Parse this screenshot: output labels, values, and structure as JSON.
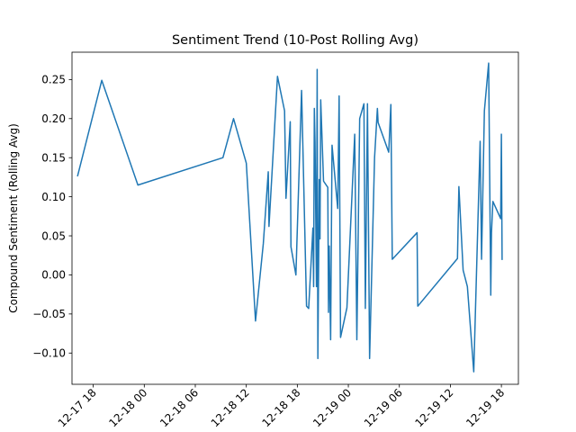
{
  "chart_data": {
    "type": "line",
    "title": "Sentiment Trend (10-Post Rolling Avg)",
    "xlabel": "",
    "ylabel": "Compound Sentiment (Rolling Avg)",
    "x_axis": {
      "type": "datetime",
      "range": [
        "2024-12-17 15:30",
        "2024-12-19 20:00"
      ],
      "ticks": [
        {
          "value": "2024-12-17 18:00",
          "label": "12-17 18"
        },
        {
          "value": "2024-12-18 00:00",
          "label": "12-18 00"
        },
        {
          "value": "2024-12-18 06:00",
          "label": "12-18 06"
        },
        {
          "value": "2024-12-18 12:00",
          "label": "12-18 12"
        },
        {
          "value": "2024-12-18 18:00",
          "label": "12-18 18"
        },
        {
          "value": "2024-12-19 00:00",
          "label": "12-19 00"
        },
        {
          "value": "2024-12-19 06:00",
          "label": "12-19 06"
        },
        {
          "value": "2024-12-19 12:00",
          "label": "12-19 12"
        },
        {
          "value": "2024-12-19 18:00",
          "label": "12-19 18"
        }
      ]
    },
    "y_axis": {
      "range": [
        -0.14,
        0.285
      ],
      "ticks": [
        {
          "value": -0.1,
          "label": "−0.10"
        },
        {
          "value": -0.05,
          "label": "−0.05"
        },
        {
          "value": 0.0,
          "label": "0.00"
        },
        {
          "value": 0.05,
          "label": "0.05"
        },
        {
          "value": 0.1,
          "label": "0.10"
        },
        {
          "value": 0.15,
          "label": "0.15"
        },
        {
          "value": 0.2,
          "label": "0.20"
        },
        {
          "value": 0.25,
          "label": "0.25"
        }
      ]
    },
    "grid": false,
    "line_color": "#1f77b4",
    "series": [
      {
        "points": [
          [
            "2024-12-17 16:10",
            0.127
          ],
          [
            "2024-12-17 19:00",
            0.249
          ],
          [
            "2024-12-17 23:15",
            0.115
          ],
          [
            "2024-12-18 09:15",
            0.15
          ],
          [
            "2024-12-18 10:30",
            0.2
          ],
          [
            "2024-12-18 12:00",
            0.143
          ],
          [
            "2024-12-18 13:05",
            -0.059
          ],
          [
            "2024-12-18 14:00",
            0.04
          ],
          [
            "2024-12-18 14:35",
            0.132
          ],
          [
            "2024-12-18 14:40",
            0.062
          ],
          [
            "2024-12-18 15:40",
            0.254
          ],
          [
            "2024-12-18 16:30",
            0.21
          ],
          [
            "2024-12-18 16:40",
            0.098
          ],
          [
            "2024-12-18 17:10",
            0.196
          ],
          [
            "2024-12-18 17:15",
            0.036
          ],
          [
            "2024-12-18 17:50",
            0.0
          ],
          [
            "2024-12-18 18:30",
            0.236
          ],
          [
            "2024-12-18 19:05",
            -0.04
          ],
          [
            "2024-12-18 19:20",
            -0.043
          ],
          [
            "2024-12-18 19:50",
            0.06
          ],
          [
            "2024-12-18 19:55",
            -0.015
          ],
          [
            "2024-12-18 20:00",
            0.213
          ],
          [
            "2024-12-18 20:05",
            0.17
          ],
          [
            "2024-12-18 20:15",
            -0.015
          ],
          [
            "2024-12-18 20:20",
            0.263
          ],
          [
            "2024-12-18 20:25",
            -0.107
          ],
          [
            "2024-12-18 20:35",
            0.122
          ],
          [
            "2024-12-18 20:40",
            0.046
          ],
          [
            "2024-12-18 20:45",
            0.224
          ],
          [
            "2024-12-18 21:05",
            0.12
          ],
          [
            "2024-12-18 21:35",
            0.112
          ],
          [
            "2024-12-18 21:40",
            -0.048
          ],
          [
            "2024-12-18 21:45",
            0.037
          ],
          [
            "2024-12-18 21:55",
            -0.083
          ],
          [
            "2024-12-18 22:05",
            0.166
          ],
          [
            "2024-12-18 22:45",
            0.085
          ],
          [
            "2024-12-18 22:55",
            0.229
          ],
          [
            "2024-12-18 23:05",
            -0.08
          ],
          [
            "2024-12-18 23:50",
            -0.042
          ],
          [
            "2024-12-19 00:45",
            0.18
          ],
          [
            "2024-12-19 01:00",
            -0.083
          ],
          [
            "2024-12-19 01:20",
            0.2
          ],
          [
            "2024-12-19 01:50",
            0.219
          ],
          [
            "2024-12-19 02:00",
            -0.043
          ],
          [
            "2024-12-19 02:15",
            0.219
          ],
          [
            "2024-12-19 02:30",
            -0.107
          ],
          [
            "2024-12-19 03:05",
            0.15
          ],
          [
            "2024-12-19 03:25",
            0.213
          ],
          [
            "2024-12-19 03:30",
            0.195
          ],
          [
            "2024-12-19 04:45",
            0.157
          ],
          [
            "2024-12-19 05:00",
            0.218
          ],
          [
            "2024-12-19 05:10",
            0.02
          ],
          [
            "2024-12-19 08:05",
            0.054
          ],
          [
            "2024-12-19 08:10",
            -0.04
          ],
          [
            "2024-12-19 12:50",
            0.021
          ],
          [
            "2024-12-19 13:00",
            0.113
          ],
          [
            "2024-12-19 13:30",
            0.006
          ],
          [
            "2024-12-19 14:00",
            -0.015
          ],
          [
            "2024-12-19 14:45",
            -0.124
          ],
          [
            "2024-12-19 15:30",
            0.171
          ],
          [
            "2024-12-19 15:40",
            0.02
          ],
          [
            "2024-12-19 16:00",
            0.21
          ],
          [
            "2024-12-19 16:30",
            0.271
          ],
          [
            "2024-12-19 16:45",
            -0.026
          ],
          [
            "2024-12-19 16:50",
            0.054
          ],
          [
            "2024-12-19 17:00",
            0.094
          ],
          [
            "2024-12-19 17:55",
            0.072
          ],
          [
            "2024-12-19 18:00",
            0.18
          ],
          [
            "2024-12-19 18:05",
            0.02
          ]
        ]
      }
    ]
  }
}
